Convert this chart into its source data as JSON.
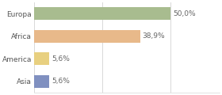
{
  "categories": [
    "Europa",
    "Africa",
    "America",
    "Asia"
  ],
  "values": [
    50.0,
    38.9,
    5.6,
    5.6
  ],
  "labels": [
    "50,0%",
    "38,9%",
    "5,6%",
    "5,6%"
  ],
  "bar_colors": [
    "#a8bc8f",
    "#e8b98a",
    "#e8d080",
    "#8090c0"
  ],
  "background_color": "#ffffff",
  "fig_background": "#f0f0f0",
  "xlim": [
    0,
    68
  ],
  "bar_height": 0.55,
  "label_fontsize": 6.5,
  "category_fontsize": 6.5,
  "grid_color": "#d8d8d8",
  "grid_xvals": [
    0,
    25,
    50
  ]
}
